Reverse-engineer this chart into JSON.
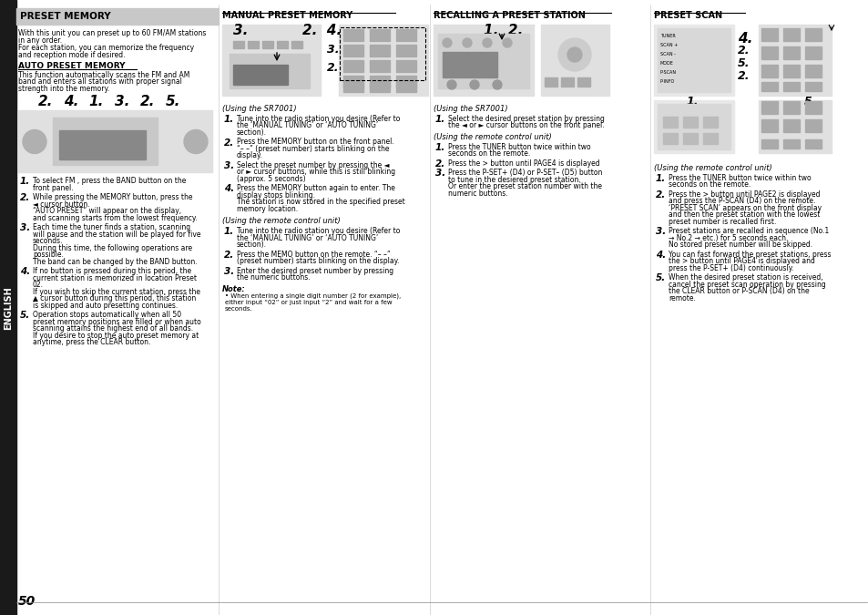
{
  "page_bg": "#ffffff",
  "left_tab_bg": "#1a1a1a",
  "left_tab_text": "ENGLISH",
  "header_bg": "#c8c8c8",
  "section1_header": "PRESET MEMORY",
  "section2_header": "MANUAL PRESET MEMORY",
  "section3_header": "RECALLING A PRESET STATION",
  "section4_header": "PRESET SCAN",
  "page_number": "50",
  "col1_intro": "With this unit you can preset up to 60 FM/AM stations\nin any order.\nFor each station, you can memorize the frequency\nand reception mode if desired.",
  "col1_sub_header": "AUTO PRESET MEMORY",
  "col1_sub_text": "This function automatically scans the FM and AM\nband and enters all stations with proper signal\nstrength into the memory.",
  "col2_using_sr7001": "(Using the SR7001)",
  "col2_using_remote": "(Using the remote control unit)",
  "col3_using_sr7001": "(Using the SR7001)",
  "col3_step_sr": "Select the desired preset station by pressing\nthe ◄ or ► cursor buttons on the front panel.",
  "col3_using_remote": "(Using the remote control unit)",
  "col4_using_remote": "(Using the remote control unit)"
}
